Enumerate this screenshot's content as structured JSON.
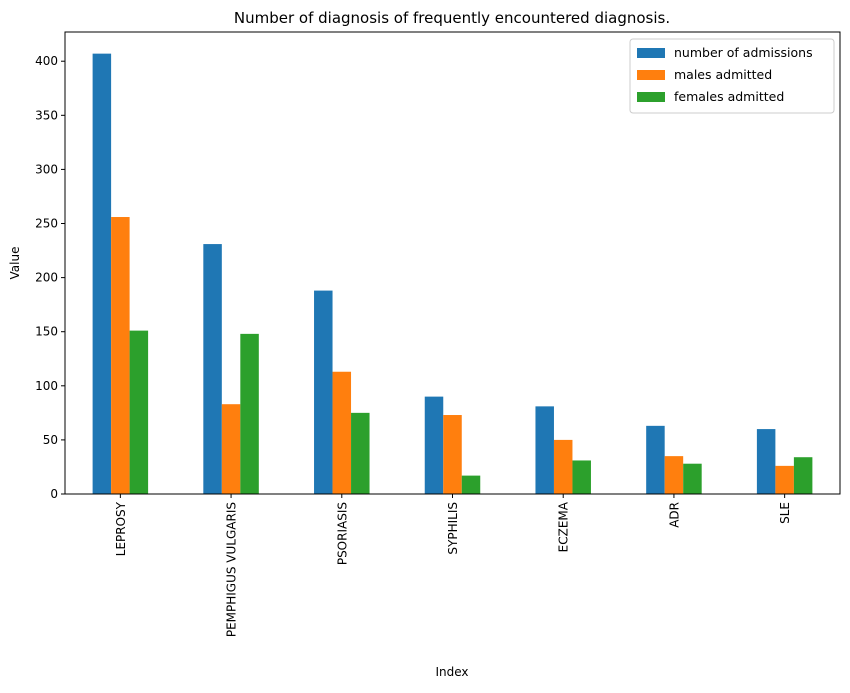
{
  "chart_data": {
    "type": "bar",
    "title": "Number of diagnosis of frequently encountered diagnosis.",
    "xlabel": "Index",
    "ylabel": "Value",
    "categories": [
      "LEPROSY",
      "PEMPHIGUS VULGARIS",
      "PSORIASIS",
      "SYPHILIS",
      "ECZEMA",
      "ADR",
      "SLE"
    ],
    "series": [
      {
        "name": "number of admissions",
        "color": "#1f77b4",
        "values": [
          407,
          231,
          188,
          90,
          81,
          63,
          60
        ]
      },
      {
        "name": "males admitted",
        "color": "#ff7f0e",
        "values": [
          256,
          83,
          113,
          73,
          50,
          35,
          26
        ]
      },
      {
        "name": "females admitted",
        "color": "#2ca02c",
        "values": [
          151,
          148,
          75,
          17,
          31,
          28,
          34
        ]
      }
    ],
    "ylim": [
      0,
      427
    ],
    "yticks": [
      0,
      50,
      100,
      150,
      200,
      250,
      300,
      350,
      400
    ],
    "legend_position": "top-right",
    "grid": false
  }
}
